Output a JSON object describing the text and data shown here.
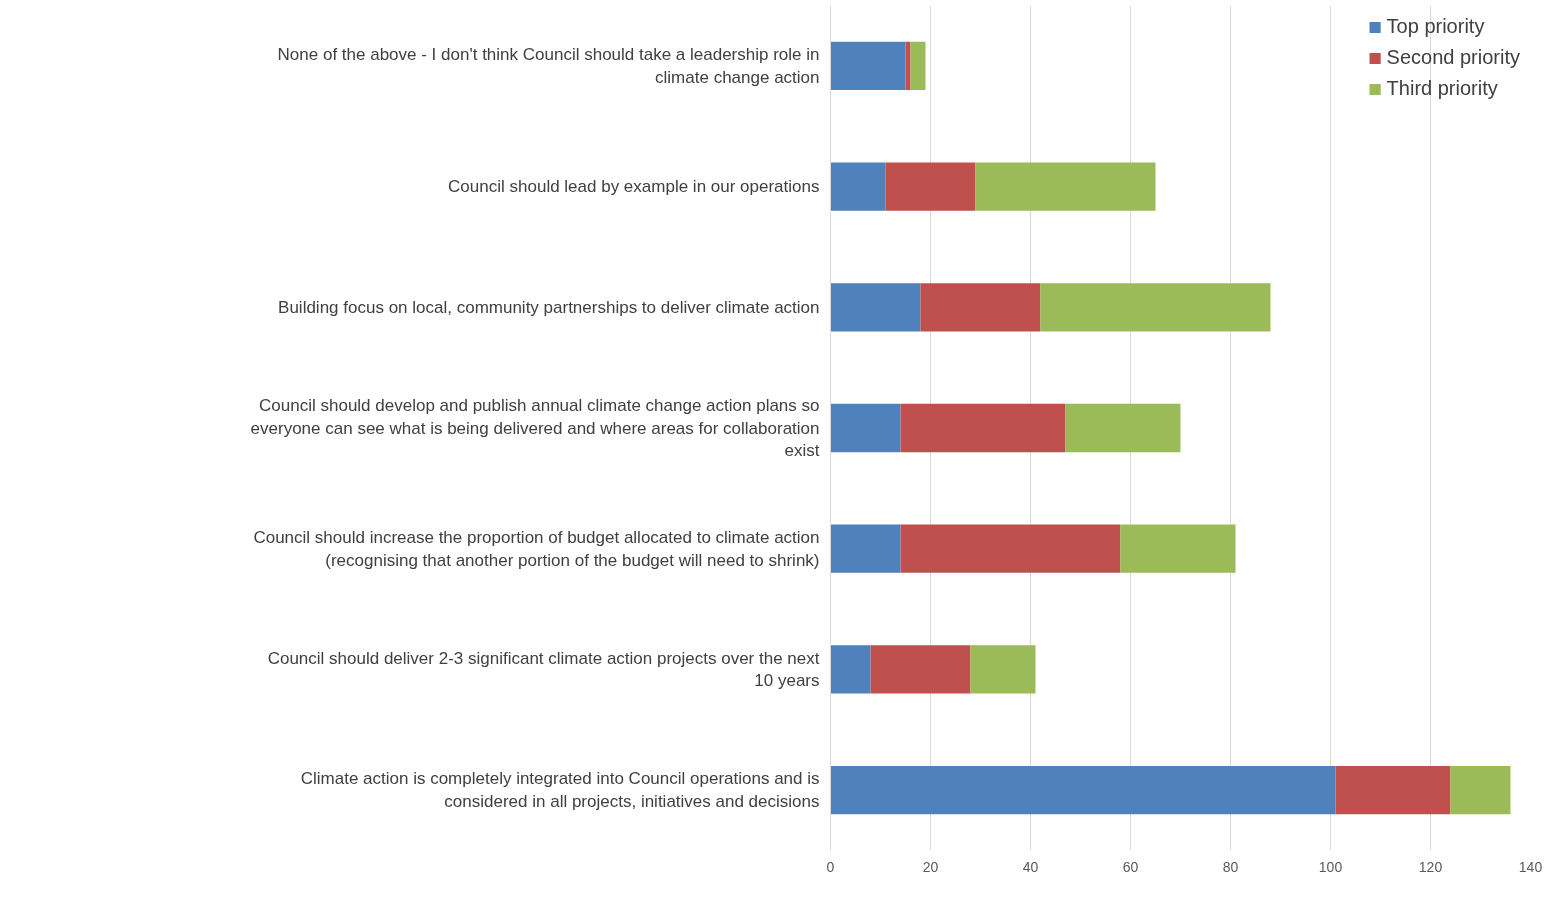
{
  "chart_data": {
    "type": "bar",
    "orientation": "horizontal",
    "stacked": true,
    "categories": [
      "None of the above - I don't think Council should take a leadership role in climate change action",
      "Council should lead by example in our operations",
      "Building focus on local, community partnerships to deliver climate action",
      "Council should develop and publish annual climate change action plans so everyone can see what is being delivered and where areas for collaboration exist",
      "Council should increase the proportion of budget allocated to climate action (recognising that another portion of the budget will need to shrink)",
      "Council should deliver 2-3 significant climate action projects over the next 10 years",
      "Climate action is completely integrated into Council operations and is considered in all projects, initiatives and decisions"
    ],
    "series": [
      {
        "name": "Top priority",
        "color": "#4f81bd",
        "values": [
          15,
          11,
          18,
          14,
          14,
          8,
          101
        ]
      },
      {
        "name": "Second priority",
        "color": "#c0504d",
        "values": [
          1,
          18,
          24,
          33,
          44,
          20,
          23
        ]
      },
      {
        "name": "Third priority",
        "color": "#9bbb59",
        "values": [
          3,
          36,
          46,
          23,
          23,
          13,
          12
        ]
      }
    ],
    "xlim": [
      0,
      140
    ],
    "xticks": [
      0,
      20,
      40,
      60,
      80,
      100,
      120,
      140
    ],
    "grid": "x",
    "legend": "top right"
  }
}
